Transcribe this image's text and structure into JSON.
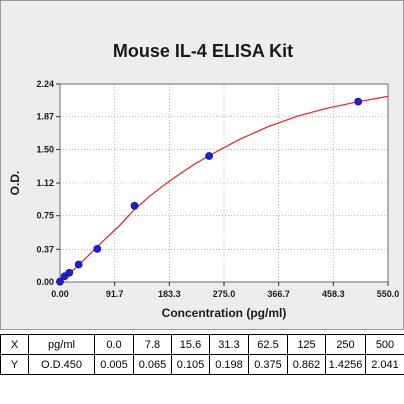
{
  "chart_data": {
    "type": "scatter",
    "title": "Mouse IL-4 ELISA Kit",
    "xlabel": "Concentration (pg/ml)",
    "ylabel": "O.D.",
    "xlim": [
      0,
      550
    ],
    "ylim": [
      0,
      2.24
    ],
    "x_ticks": [
      "0.00",
      "91.7",
      "183.3",
      "275.0",
      "366.7",
      "458.3",
      "550.0"
    ],
    "y_ticks": [
      "0.00",
      "0.37",
      "0.75",
      "1.12",
      "1.50",
      "1.87",
      "2.24"
    ],
    "grid": true,
    "points": [
      {
        "x": 0.0,
        "y": 0.005
      },
      {
        "x": 7.8,
        "y": 0.065
      },
      {
        "x": 15.6,
        "y": 0.105
      },
      {
        "x": 31.3,
        "y": 0.198
      },
      {
        "x": 62.5,
        "y": 0.375
      },
      {
        "x": 125,
        "y": 0.862
      },
      {
        "x": 250,
        "y": 1.4256
      },
      {
        "x": 500,
        "y": 2.041
      }
    ],
    "point_color": "#1f1fd6",
    "curve_color": "#e02020",
    "fit_curve": [
      {
        "x": 0,
        "y": 0.0
      },
      {
        "x": 25,
        "y": 0.15
      },
      {
        "x": 50,
        "y": 0.315
      },
      {
        "x": 75,
        "y": 0.48
      },
      {
        "x": 100,
        "y": 0.64
      },
      {
        "x": 125,
        "y": 0.82
      },
      {
        "x": 150,
        "y": 0.97
      },
      {
        "x": 175,
        "y": 1.1
      },
      {
        "x": 200,
        "y": 1.22
      },
      {
        "x": 225,
        "y": 1.33
      },
      {
        "x": 250,
        "y": 1.43
      },
      {
        "x": 300,
        "y": 1.61
      },
      {
        "x": 350,
        "y": 1.76
      },
      {
        "x": 400,
        "y": 1.88
      },
      {
        "x": 450,
        "y": 1.97
      },
      {
        "x": 500,
        "y": 2.04
      },
      {
        "x": 550,
        "y": 2.1
      }
    ]
  },
  "table": {
    "rows": [
      {
        "axis": "X",
        "unit": "pg/ml",
        "values": [
          "0.0",
          "7.8",
          "15.6",
          "31.3",
          "62.5",
          "125",
          "250",
          "500"
        ]
      },
      {
        "axis": "Y",
        "unit": "O.D.450",
        "values": [
          "0.005",
          "0.065",
          "0.105",
          "0.198",
          "0.375",
          "0.862",
          "1.4256",
          "2.041"
        ]
      }
    ]
  }
}
